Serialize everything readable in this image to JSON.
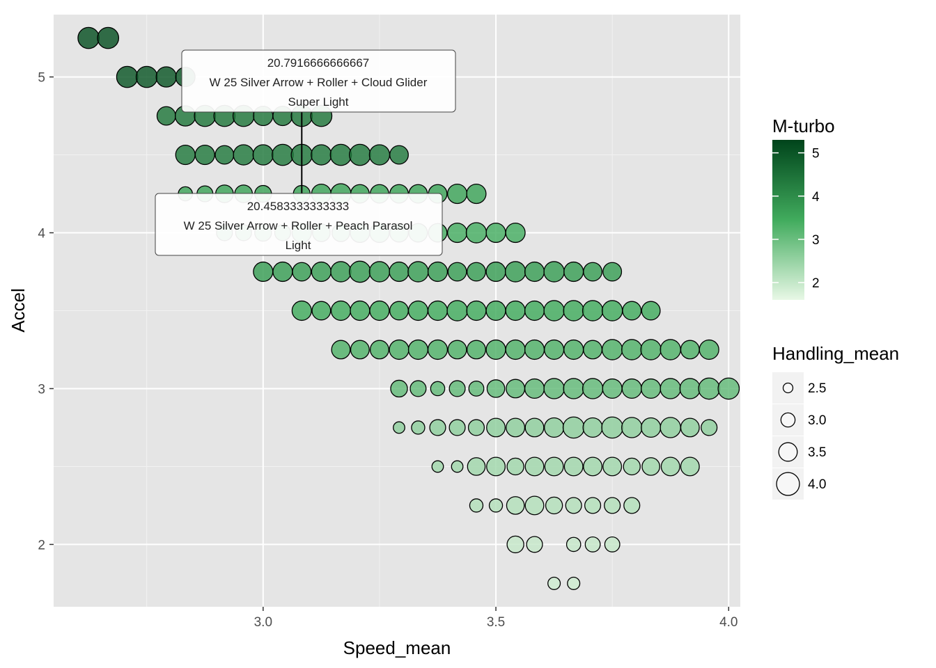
{
  "chart_data": {
    "type": "scatter",
    "xlabel": "Speed_mean",
    "ylabel": "Accel",
    "xlim": [
      2.55,
      4.025
    ],
    "ylim": [
      1.6,
      5.4
    ],
    "x_ticks": [
      3.0,
      3.5,
      4.0
    ],
    "x_tick_labels": [
      "3.0",
      "3.5",
      "4.0"
    ],
    "y_ticks": [
      2,
      3,
      4,
      5
    ],
    "y_tick_labels": [
      "2",
      "3",
      "4",
      "5"
    ],
    "grid": true,
    "color_scale": {
      "title": "M-turbo",
      "min": 1.6,
      "max": 5.3,
      "low_color": "#e8f8e6",
      "high_color": "#00441b",
      "ticks": [
        2,
        3,
        4,
        5
      ],
      "tick_labels": [
        "2",
        "3",
        "4",
        "5"
      ]
    },
    "size_scale": {
      "title": "Handling_mean",
      "min": 2.25,
      "max": 4.25,
      "values": [
        2.5,
        3.0,
        3.5,
        4.0
      ],
      "labels": [
        "2.5",
        "3.0",
        "3.5",
        "4.0"
      ]
    },
    "rows": [
      {
        "accel": 5.25,
        "mturbo": 5.1,
        "points": [
          [
            2.625,
            3.8
          ],
          [
            2.667,
            3.8
          ]
        ]
      },
      {
        "accel": 5.0,
        "mturbo": 5.0,
        "points": [
          [
            2.708,
            3.8
          ],
          [
            2.75,
            3.8
          ],
          [
            2.792,
            3.7
          ],
          [
            2.833,
            3.6
          ]
        ]
      },
      {
        "accel": 4.75,
        "mturbo": 4.4,
        "points": [
          [
            2.792,
            3.5
          ],
          [
            2.833,
            3.7
          ],
          [
            2.875,
            3.8
          ],
          [
            2.917,
            3.8
          ],
          [
            2.958,
            3.8
          ],
          [
            3.0,
            3.6
          ],
          [
            3.042,
            3.6
          ],
          [
            3.083,
            3.8
          ],
          [
            3.125,
            3.8
          ]
        ]
      },
      {
        "accel": 4.5,
        "mturbo": 4.35,
        "points": [
          [
            2.833,
            3.6
          ],
          [
            2.875,
            3.6
          ],
          [
            2.917,
            3.5
          ],
          [
            2.958,
            3.7
          ],
          [
            3.0,
            3.7
          ],
          [
            3.042,
            3.8
          ],
          [
            3.083,
            3.8
          ],
          [
            3.125,
            3.7
          ],
          [
            3.167,
            3.8
          ],
          [
            3.208,
            3.8
          ],
          [
            3.25,
            3.7
          ],
          [
            3.292,
            3.5
          ]
        ]
      },
      {
        "accel": 4.25,
        "mturbo": 3.6,
        "points": [
          [
            2.833,
            3.0
          ],
          [
            2.875,
            3.2
          ],
          [
            2.917,
            3.4
          ],
          [
            2.958,
            3.4
          ],
          [
            3.0,
            3.3
          ],
          [
            3.083,
            3.3
          ],
          [
            3.125,
            3.6
          ],
          [
            3.167,
            3.7
          ],
          [
            3.208,
            3.5
          ],
          [
            3.25,
            3.5
          ],
          [
            3.292,
            3.5
          ],
          [
            3.333,
            3.5
          ],
          [
            3.375,
            3.5
          ],
          [
            3.417,
            3.6
          ],
          [
            3.458,
            3.6
          ]
        ]
      },
      {
        "accel": 4.0,
        "mturbo": 3.4,
        "points": [
          [
            2.917,
            3.2
          ],
          [
            2.958,
            3.2
          ],
          [
            3.0,
            3.3
          ],
          [
            3.042,
            3.2
          ],
          [
            3.083,
            3.6
          ],
          [
            3.125,
            3.4
          ],
          [
            3.167,
            3.4
          ],
          [
            3.208,
            3.6
          ],
          [
            3.25,
            3.6
          ],
          [
            3.292,
            3.5
          ],
          [
            3.333,
            3.5
          ],
          [
            3.375,
            3.5
          ],
          [
            3.417,
            3.6
          ],
          [
            3.458,
            3.7
          ],
          [
            3.5,
            3.6
          ],
          [
            3.542,
            3.6
          ]
        ]
      },
      {
        "accel": 3.75,
        "mturbo": 3.7,
        "points": [
          [
            3.0,
            3.6
          ],
          [
            3.042,
            3.6
          ],
          [
            3.083,
            3.5
          ],
          [
            3.125,
            3.6
          ],
          [
            3.167,
            3.7
          ],
          [
            3.208,
            3.8
          ],
          [
            3.25,
            3.7
          ],
          [
            3.292,
            3.6
          ],
          [
            3.333,
            3.7
          ],
          [
            3.375,
            3.6
          ],
          [
            3.417,
            3.5
          ],
          [
            3.458,
            3.5
          ],
          [
            3.5,
            3.6
          ],
          [
            3.542,
            3.7
          ],
          [
            3.583,
            3.6
          ],
          [
            3.625,
            3.7
          ],
          [
            3.667,
            3.6
          ],
          [
            3.708,
            3.5
          ],
          [
            3.75,
            3.5
          ]
        ]
      },
      {
        "accel": 3.5,
        "mturbo": 3.45,
        "points": [
          [
            3.083,
            3.6
          ],
          [
            3.125,
            3.5
          ],
          [
            3.167,
            3.6
          ],
          [
            3.208,
            3.6
          ],
          [
            3.25,
            3.6
          ],
          [
            3.292,
            3.5
          ],
          [
            3.333,
            3.6
          ],
          [
            3.375,
            3.6
          ],
          [
            3.417,
            3.7
          ],
          [
            3.458,
            3.6
          ],
          [
            3.5,
            3.6
          ],
          [
            3.542,
            3.6
          ],
          [
            3.583,
            3.6
          ],
          [
            3.625,
            3.7
          ],
          [
            3.667,
            3.7
          ],
          [
            3.708,
            3.7
          ],
          [
            3.75,
            3.7
          ],
          [
            3.792,
            3.5
          ],
          [
            3.833,
            3.5
          ]
        ]
      },
      {
        "accel": 3.25,
        "mturbo": 3.3,
        "points": [
          [
            3.167,
            3.5
          ],
          [
            3.208,
            3.5
          ],
          [
            3.25,
            3.5
          ],
          [
            3.292,
            3.6
          ],
          [
            3.333,
            3.6
          ],
          [
            3.375,
            3.6
          ],
          [
            3.417,
            3.5
          ],
          [
            3.458,
            3.5
          ],
          [
            3.5,
            3.6
          ],
          [
            3.542,
            3.6
          ],
          [
            3.583,
            3.6
          ],
          [
            3.625,
            3.6
          ],
          [
            3.667,
            3.6
          ],
          [
            3.708,
            3.5
          ],
          [
            3.75,
            3.7
          ],
          [
            3.792,
            3.7
          ],
          [
            3.833,
            3.7
          ],
          [
            3.875,
            3.7
          ],
          [
            3.917,
            3.5
          ],
          [
            3.958,
            3.6
          ]
        ]
      },
      {
        "accel": 3.0,
        "mturbo": 3.1,
        "points": [
          [
            3.292,
            3.3
          ],
          [
            3.333,
            3.2
          ],
          [
            3.375,
            3.0
          ],
          [
            3.417,
            3.2
          ],
          [
            3.458,
            3.1
          ],
          [
            3.5,
            3.4
          ],
          [
            3.542,
            3.5
          ],
          [
            3.583,
            3.6
          ],
          [
            3.625,
            3.7
          ],
          [
            3.667,
            3.7
          ],
          [
            3.708,
            3.7
          ],
          [
            3.75,
            3.6
          ],
          [
            3.792,
            3.6
          ],
          [
            3.833,
            3.6
          ],
          [
            3.875,
            3.7
          ],
          [
            3.917,
            3.7
          ],
          [
            3.958,
            3.8
          ],
          [
            4.0,
            3.8
          ]
        ]
      },
      {
        "accel": 2.75,
        "mturbo": 2.6,
        "points": [
          [
            3.292,
            2.7
          ],
          [
            3.333,
            2.9
          ],
          [
            3.375,
            3.2
          ],
          [
            3.417,
            3.2
          ],
          [
            3.458,
            3.2
          ],
          [
            3.5,
            3.5
          ],
          [
            3.542,
            3.5
          ],
          [
            3.583,
            3.5
          ],
          [
            3.625,
            3.6
          ],
          [
            3.667,
            3.8
          ],
          [
            3.708,
            3.6
          ],
          [
            3.75,
            3.8
          ],
          [
            3.792,
            3.7
          ],
          [
            3.833,
            3.6
          ],
          [
            3.875,
            3.7
          ],
          [
            3.917,
            3.5
          ],
          [
            3.958,
            3.2
          ]
        ]
      },
      {
        "accel": 2.5,
        "mturbo": 2.4,
        "points": [
          [
            3.375,
            2.7
          ],
          [
            3.417,
            2.7
          ],
          [
            3.458,
            3.4
          ],
          [
            3.5,
            3.5
          ],
          [
            3.542,
            3.3
          ],
          [
            3.583,
            3.5
          ],
          [
            3.625,
            3.5
          ],
          [
            3.667,
            3.5
          ],
          [
            3.708,
            3.5
          ],
          [
            3.75,
            3.5
          ],
          [
            3.792,
            3.3
          ],
          [
            3.833,
            3.4
          ],
          [
            3.875,
            3.5
          ],
          [
            3.917,
            3.5
          ]
        ]
      },
      {
        "accel": 2.25,
        "mturbo": 2.2,
        "points": [
          [
            3.458,
            2.9
          ],
          [
            3.5,
            2.9
          ],
          [
            3.542,
            3.4
          ],
          [
            3.583,
            3.5
          ],
          [
            3.625,
            3.3
          ],
          [
            3.667,
            3.2
          ],
          [
            3.708,
            3.2
          ],
          [
            3.75,
            3.2
          ],
          [
            3.792,
            3.2
          ]
        ]
      },
      {
        "accel": 2.0,
        "mturbo": 2.0,
        "points": [
          [
            3.542,
            3.3
          ],
          [
            3.583,
            3.2
          ],
          [
            3.667,
            3.0
          ],
          [
            3.708,
            3.1
          ],
          [
            3.75,
            3.1
          ]
        ]
      },
      {
        "accel": 1.75,
        "mturbo": 1.9,
        "points": [
          [
            3.625,
            2.8
          ],
          [
            3.667,
            2.8
          ]
        ]
      }
    ],
    "annotations": [
      {
        "value": "20.7916666666667",
        "line2": "W 25 Silver Arrow + Roller + Cloud Glider",
        "line3": "Super Light",
        "x": 3.083,
        "y": 4.75
      },
      {
        "value": "20.4583333333333",
        "line2": "W 25 Silver Arrow + Roller + Peach Parasol",
        "line3": "Light",
        "x": 3.083,
        "y": 4.25
      }
    ]
  }
}
